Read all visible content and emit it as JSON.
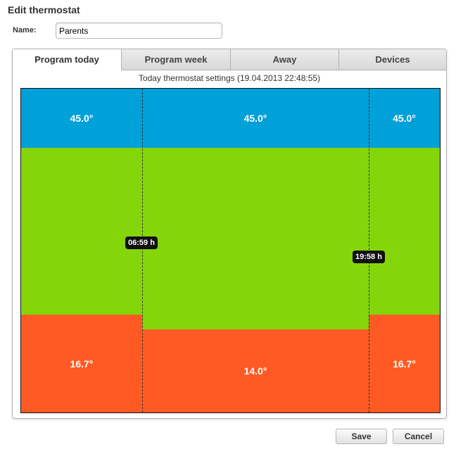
{
  "dialog": {
    "title": "Edit thermostat",
    "name_label": "Name:",
    "name_value": "Parents"
  },
  "tabs": [
    {
      "label": "Program today",
      "active": true
    },
    {
      "label": "Program week",
      "active": false
    },
    {
      "label": "Away",
      "active": false
    },
    {
      "label": "Devices",
      "active": false
    }
  ],
  "program": {
    "subtitle": "Today thermostat settings (19.04.2013 22:48:55)",
    "switch_times": [
      "06:59 h",
      "19:58 h"
    ],
    "periods": [
      {
        "start": "00:00",
        "end": "06:59",
        "high": "45.0°",
        "low": "16.7°"
      },
      {
        "start": "06:59",
        "end": "19:58",
        "high": "45.0°",
        "low": "14.0°"
      },
      {
        "start": "19:58",
        "end": "24:00",
        "high": "45.0°",
        "low": "16.7°"
      }
    ],
    "colors": {
      "high": "#00a0d8",
      "comfort": "#84d50a",
      "low": "#ff5a23"
    }
  },
  "footer": {
    "save_label": "Save",
    "cancel_label": "Cancel"
  }
}
